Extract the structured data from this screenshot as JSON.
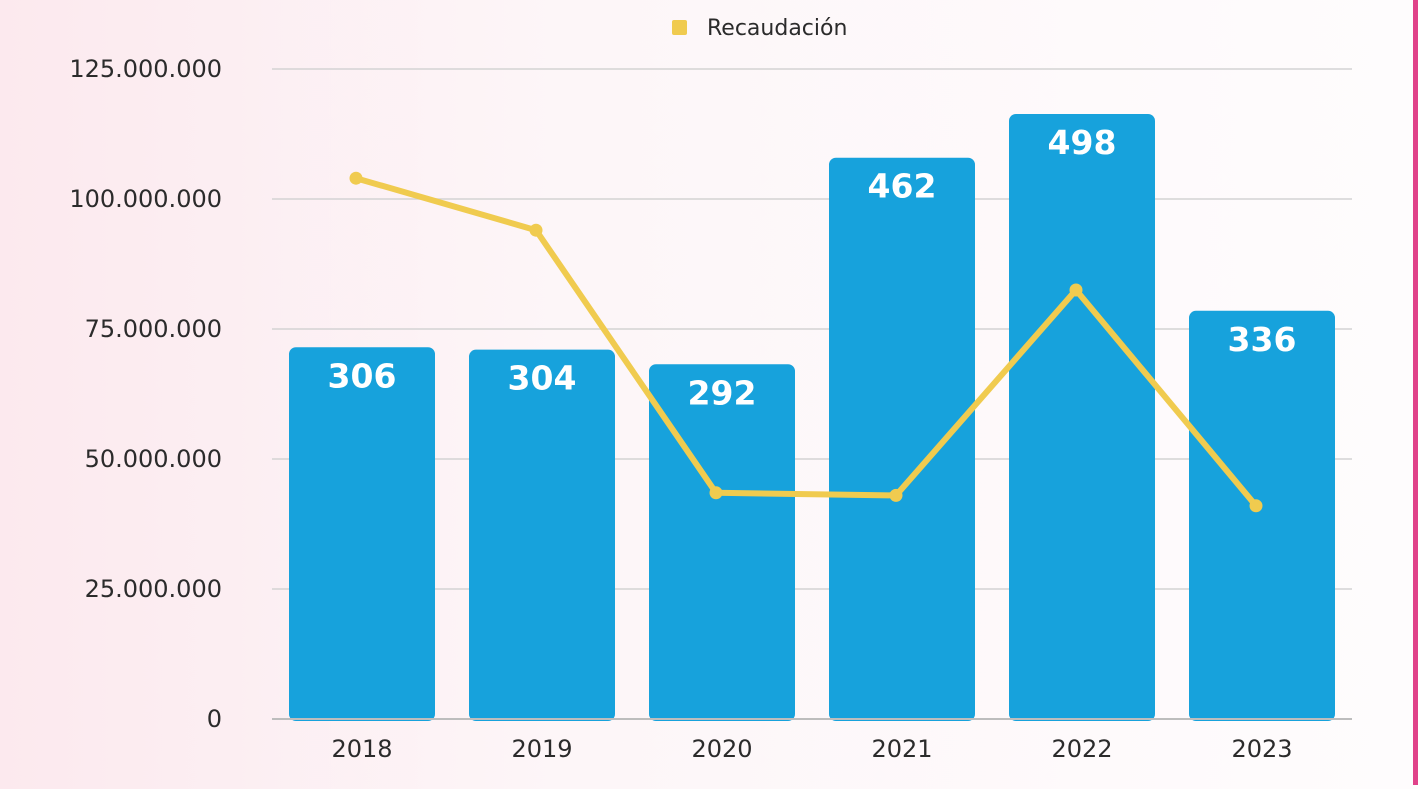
{
  "chart_data": {
    "type": "bar",
    "categories": [
      "2018",
      "2019",
      "2020",
      "2021",
      "2022",
      "2023"
    ],
    "bar_values": [
      306,
      304,
      292,
      462,
      498,
      336
    ],
    "bar_labels": [
      "306",
      "304",
      "292",
      "462",
      "498",
      "336"
    ],
    "series": [
      {
        "name": "Recaudación",
        "type": "line",
        "values": [
          104000000,
          94000000,
          43500000,
          43000000,
          82500000,
          41000000
        ]
      }
    ],
    "y_ticks": [
      0,
      25000000,
      50000000,
      75000000,
      100000000,
      125000000
    ],
    "y_tick_labels": [
      "0",
      "25.000.000",
      "50.000.000",
      "75.000.000",
      "100.000.000",
      "125.000.000"
    ],
    "ylim": [
      0,
      125000000
    ],
    "grid": true,
    "legend_position": "top-center",
    "colors": {
      "bars": "#17a2dc",
      "line": "#f0cb4f",
      "grid": "#d3d3d3",
      "text": "#2b2b2b"
    }
  }
}
